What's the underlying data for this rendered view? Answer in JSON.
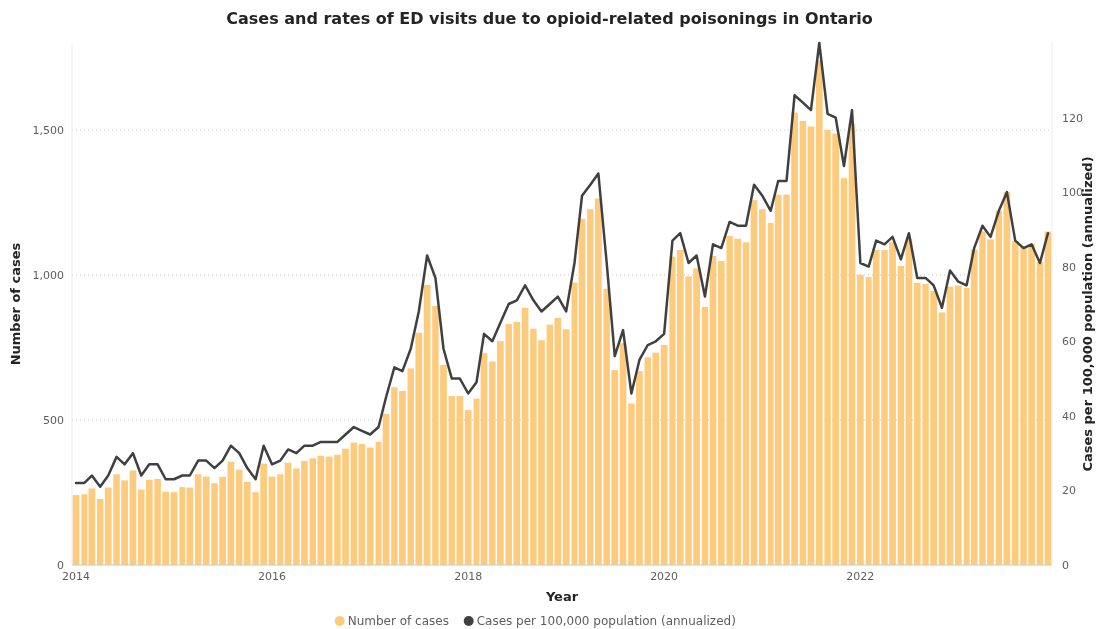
{
  "chart_data": {
    "type": "bar",
    "title": "Cases and rates of ED visits due to opioid-related poisonings in Ontario",
    "xlabel": "Year",
    "ylabel": "Number of cases",
    "y2label": "Cases per 100,000 population (annualized)",
    "x": [
      "2014-01",
      "2014-02",
      "2014-03",
      "2014-04",
      "2014-05",
      "2014-06",
      "2014-07",
      "2014-08",
      "2014-09",
      "2014-10",
      "2014-11",
      "2014-12",
      "2015-01",
      "2015-02",
      "2015-03",
      "2015-04",
      "2015-05",
      "2015-06",
      "2015-07",
      "2015-08",
      "2015-09",
      "2015-10",
      "2015-11",
      "2015-12",
      "2016-01",
      "2016-02",
      "2016-03",
      "2016-04",
      "2016-05",
      "2016-06",
      "2016-07",
      "2016-08",
      "2016-09",
      "2016-10",
      "2016-11",
      "2016-12",
      "2017-01",
      "2017-02",
      "2017-03",
      "2017-04",
      "2017-05",
      "2017-06",
      "2017-07",
      "2017-08",
      "2017-09",
      "2017-10",
      "2017-11",
      "2017-12",
      "2018-01",
      "2018-02",
      "2018-03",
      "2018-04",
      "2018-05",
      "2018-06",
      "2018-07",
      "2018-08",
      "2018-09",
      "2018-10",
      "2018-11",
      "2018-12",
      "2019-01",
      "2019-02",
      "2019-03",
      "2019-04",
      "2019-05",
      "2019-06",
      "2019-07",
      "2019-08",
      "2019-09",
      "2019-10",
      "2019-11",
      "2019-12",
      "2020-01",
      "2020-02",
      "2020-03",
      "2020-04",
      "2020-05",
      "2020-06",
      "2020-07",
      "2020-08",
      "2020-09",
      "2020-10",
      "2020-11",
      "2020-12",
      "2021-01",
      "2021-02",
      "2021-03",
      "2021-04",
      "2021-05",
      "2021-06",
      "2021-07",
      "2021-08",
      "2021-09",
      "2021-10",
      "2021-11",
      "2021-12",
      "2022-01",
      "2022-02",
      "2022-03",
      "2022-04",
      "2022-05",
      "2022-06",
      "2022-07",
      "2022-08",
      "2022-09",
      "2022-10",
      "2022-11",
      "2022-12",
      "2023-01",
      "2023-02",
      "2023-03",
      "2023-04",
      "2023-05",
      "2023-06",
      "2023-07",
      "2023-08",
      "2023-09",
      "2023-10",
      "2023-11",
      "2023-12"
    ],
    "series": [
      {
        "name": "Number of cases",
        "color": "#fdcb7e",
        "values": [
          241,
          244,
          264,
          228,
          267,
          313,
          292,
          326,
          260,
          294,
          297,
          253,
          251,
          269,
          267,
          313,
          305,
          282,
          304,
          356,
          329,
          287,
          251,
          350,
          305,
          313,
          353,
          333,
          359,
          368,
          377,
          374,
          380,
          401,
          422,
          417,
          405,
          425,
          521,
          613,
          600,
          678,
          801,
          966,
          893,
          690,
          583,
          583,
          534,
          574,
          730,
          702,
          772,
          831,
          838,
          887,
          815,
          775,
          829,
          852,
          813,
          974,
          1194,
          1227,
          1264,
          952,
          672,
          765,
          557,
          669,
          716,
          732,
          759,
          1063,
          1086,
          995,
          1023,
          890,
          1066,
          1048,
          1135,
          1125,
          1113,
          1258,
          1227,
          1180,
          1277,
          1277,
          1560,
          1531,
          1512,
          1740,
          1500,
          1488,
          1334,
          1522,
          1001,
          993,
          1086,
          1086,
          1113,
          1031,
          1125,
          973,
          969,
          945,
          871,
          960,
          964,
          955,
          1088,
          1150,
          1123,
          1222,
          1287,
          1117,
          1098,
          1107,
          1045,
          1150
        ]
      },
      {
        "name": "Cases per 100,000 population (annualized)",
        "type": "line",
        "axis": "y2",
        "color": "#404040",
        "values": [
          22,
          22,
          24,
          21,
          24,
          29,
          27,
          30,
          24,
          27,
          27,
          23,
          23,
          24,
          24,
          28,
          28,
          26,
          28,
          32,
          30,
          26,
          23,
          32,
          27,
          28,
          31,
          30,
          32,
          32,
          33,
          33,
          33,
          35,
          37,
          36,
          35,
          37,
          45,
          53,
          52,
          58,
          68,
          83,
          77,
          58,
          50,
          50,
          46,
          49,
          62,
          60,
          65,
          70,
          71,
          75,
          71,
          68,
          70,
          72,
          68,
          81,
          99,
          102,
          105,
          81,
          56,
          63,
          46,
          55,
          59,
          60,
          62,
          87,
          89,
          81,
          83,
          72,
          86,
          85,
          92,
          91,
          91,
          102,
          99,
          95,
          103,
          103,
          126,
          124,
          122,
          140,
          121,
          120,
          107,
          122,
          81,
          80,
          87,
          86,
          88,
          82,
          89,
          77,
          77,
          75,
          69,
          79,
          76,
          75,
          85,
          91,
          88,
          95,
          100,
          87,
          85,
          86,
          81,
          89
        ]
      }
    ],
    "xlim": [
      "2013-12-17",
      "2023-12-16"
    ],
    "xticks": [
      {
        "value": "2014",
        "label": "2014"
      },
      {
        "value": "2016",
        "label": "2016"
      },
      {
        "value": "2018",
        "label": "2018"
      },
      {
        "value": "2020",
        "label": "2020"
      },
      {
        "value": "2022",
        "label": "2022"
      }
    ],
    "ylim": [
      0,
      1800
    ],
    "yticks": [
      0,
      {
        "value": 500,
        "label": "500"
      },
      {
        "value": 1000,
        "label": "1,000"
      },
      {
        "value": 1500,
        "label": "1,500"
      }
    ],
    "y2lim": [
      0,
      140
    ],
    "y2ticks": [
      0,
      20,
      40,
      60,
      80,
      100,
      120
    ],
    "grid": "y",
    "legend": "bottom"
  }
}
